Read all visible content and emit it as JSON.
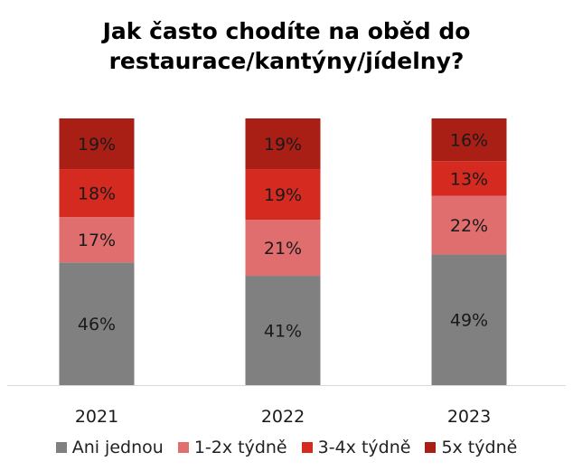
{
  "chart_data": {
    "type": "bar",
    "stacked": true,
    "percent": true,
    "title_lines": [
      "Jak často chodíte na oběd do",
      "restaurace/kantýny/jídelny?"
    ],
    "categories": [
      "2021",
      "2022",
      "2023"
    ],
    "series": [
      {
        "name": "Ani jednou",
        "color": "#808080",
        "values": [
          46,
          41,
          49
        ]
      },
      {
        "name": "1-2x týdně",
        "color": "#e06e6e",
        "values": [
          17,
          21,
          22
        ]
      },
      {
        "name": "3-4x týdně",
        "color": "#d42a20",
        "values": [
          18,
          19,
          13
        ]
      },
      {
        "name": "5x týdně",
        "color": "#a91e15",
        "values": [
          19,
          19,
          16
        ]
      }
    ],
    "ylim": [
      0,
      100
    ],
    "grid": false,
    "legend_position": "bottom"
  }
}
